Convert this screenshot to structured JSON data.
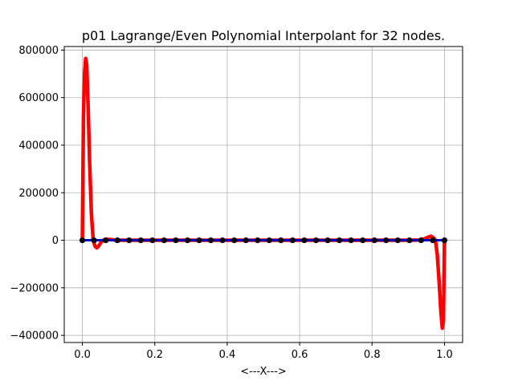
{
  "chart_data": {
    "type": "line",
    "title": "p01 Lagrange/Even Polynomial Interpolant for 32 nodes.",
    "xlabel": "<---X--->",
    "ylabel": "",
    "xlim": [
      -0.05,
      1.05
    ],
    "ylim": [
      -430000,
      815000
    ],
    "grid": true,
    "x_ticks": [
      0.0,
      0.2,
      0.4,
      0.6,
      0.8,
      1.0
    ],
    "x_tick_labels": [
      "0.0",
      "0.2",
      "0.4",
      "0.6",
      "0.8",
      "1.0"
    ],
    "y_ticks": [
      -400000,
      -200000,
      0,
      200000,
      400000,
      600000,
      800000
    ],
    "y_tick_labels": [
      "−400000",
      "−200000",
      "0",
      "200000",
      "400000",
      "600000",
      "800000"
    ],
    "series": [
      {
        "color": "#ff0000",
        "style": "line",
        "points": [
          [
            0.0,
            0
          ],
          [
            0.003,
            520000
          ],
          [
            0.006,
            700000
          ],
          [
            0.009,
            765000
          ],
          [
            0.012,
            740000
          ],
          [
            0.016,
            560000
          ],
          [
            0.02,
            330000
          ],
          [
            0.025,
            110000
          ],
          [
            0.03,
            0
          ],
          [
            0.035,
            -25000
          ],
          [
            0.04,
            -32000
          ],
          [
            0.046,
            -22000
          ],
          [
            0.052,
            -7000
          ],
          [
            0.06,
            2000
          ],
          [
            0.07,
            4000
          ],
          [
            0.08,
            3000
          ],
          [
            0.09,
            1000
          ],
          [
            0.1,
            0
          ],
          [
            0.5,
            0
          ],
          [
            0.9,
            0
          ],
          [
            0.93,
            1000
          ],
          [
            0.945,
            6000
          ],
          [
            0.955,
            13000
          ],
          [
            0.963,
            17000
          ],
          [
            0.97,
            10000
          ],
          [
            0.975,
            0
          ],
          [
            0.98,
            -60000
          ],
          [
            0.985,
            -170000
          ],
          [
            0.99,
            -300000
          ],
          [
            0.994,
            -370000
          ],
          [
            0.997,
            -340000
          ],
          [
            1.0,
            0
          ]
        ]
      },
      {
        "color": "#0000cc",
        "style": "line",
        "points": [
          [
            0.0,
            0
          ],
          [
            1.0,
            0
          ]
        ]
      },
      {
        "color": "#000000",
        "style": "markers",
        "points": [
          [
            0.0,
            0
          ],
          [
            0.032258,
            0
          ],
          [
            0.064516,
            0
          ],
          [
            0.096774,
            0
          ],
          [
            0.129032,
            0
          ],
          [
            0.16129,
            0
          ],
          [
            0.193548,
            0
          ],
          [
            0.225806,
            0
          ],
          [
            0.258065,
            0
          ],
          [
            0.290323,
            0
          ],
          [
            0.322581,
            0
          ],
          [
            0.354839,
            0
          ],
          [
            0.387097,
            0
          ],
          [
            0.419355,
            0
          ],
          [
            0.451613,
            0
          ],
          [
            0.483871,
            0
          ],
          [
            0.516129,
            0
          ],
          [
            0.548387,
            0
          ],
          [
            0.580645,
            0
          ],
          [
            0.612903,
            0
          ],
          [
            0.645161,
            0
          ],
          [
            0.677419,
            0
          ],
          [
            0.709677,
            0
          ],
          [
            0.741935,
            0
          ],
          [
            0.774194,
            0
          ],
          [
            0.806452,
            0
          ],
          [
            0.83871,
            0
          ],
          [
            0.870968,
            0
          ],
          [
            0.903226,
            0
          ],
          [
            0.935484,
            0
          ],
          [
            0.967742,
            0
          ],
          [
            1.0,
            0
          ]
        ]
      }
    ]
  }
}
